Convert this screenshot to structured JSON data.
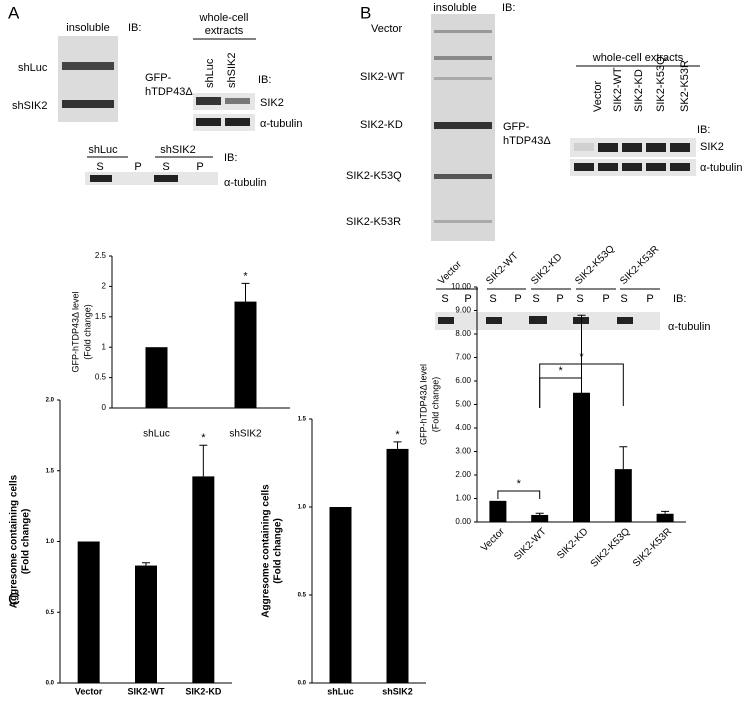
{
  "panel_labels": [
    "A",
    "B",
    "C"
  ],
  "panel_a": {
    "insoluble": {
      "title": "insoluble",
      "ib": "IB:",
      "lanes": [
        "shLuc",
        "shSIK2"
      ],
      "target": [
        "GFP-",
        "hTDP43Δ"
      ]
    },
    "whole_cell": {
      "title": [
        "whole-cell",
        "extracts"
      ],
      "lanes": [
        "shLuc",
        "shSIK2"
      ],
      "ib": "IB:",
      "targets": [
        "SIK2",
        "α-tubulin"
      ]
    },
    "fractions": {
      "groups": [
        "shLuc",
        "shSIK2"
      ],
      "fractions": [
        "S",
        "P",
        "S",
        "P"
      ],
      "ib": "IB:",
      "target": "α-tubulin"
    }
  },
  "panel_b": {
    "insoluble": {
      "title": "insoluble",
      "ib": "IB:",
      "lanes": [
        "Vector",
        "SIK2-WT",
        "SIK2-KD",
        "SIK2-K53Q",
        "SIK2-K53R"
      ],
      "target": [
        "GFP-",
        "hTDP43Δ"
      ]
    },
    "whole_cell": {
      "title": "whole-cell extracts",
      "lanes": [
        "Vector",
        "SIK2-WT",
        "SIK2-KD",
        "SIK2-K53Q",
        "SK2-K53R"
      ],
      "ib": "IB:",
      "targets": [
        "SIK2",
        "α-tubulin"
      ]
    },
    "fractions": {
      "groups": [
        "Vector",
        "SIK2-WT",
        "SIK2-KD",
        "SIK2-K53Q",
        "SIK2-K53R"
      ],
      "fractions": [
        "S",
        "P",
        "S",
        "P",
        "S",
        "P",
        "S",
        "P",
        "S",
        "P"
      ],
      "ib": "IB:",
      "target": "α-tubulin"
    }
  },
  "chart_data": [
    {
      "type": "bar",
      "ylabel": [
        "GFP-hTDP43Δ level",
        "(Fold change)"
      ],
      "categories": [
        "shLuc",
        "shSIK2"
      ],
      "values": [
        1,
        1.75
      ],
      "errors": [
        null,
        0.3
      ],
      "annotations": [
        null,
        "*"
      ],
      "color": "#000000",
      "ylim": [
        0,
        2.5
      ],
      "yticks": [
        0,
        0.5,
        1,
        1.5,
        2,
        2.5
      ]
    },
    {
      "type": "bar",
      "ylabel": [
        "GFP-hTDP43Δ level",
        "(Fold change)"
      ],
      "categories": [
        "Vector",
        "SIK2-WT",
        "SIK2-KD",
        "SIK2-K53Q",
        "SIK2-K53R"
      ],
      "values": [
        0.9,
        0.3,
        5.5,
        2.25,
        0.35
      ],
      "errors": [
        null,
        0.07,
        3.3,
        0.95,
        0.1
      ],
      "color": "#000000",
      "brackets": [
        {
          "from": "Vector",
          "to": "SIK2-WT",
          "label": "*"
        },
        {
          "from": "SIK2-WT",
          "to": "SIK2-KD",
          "label": "*"
        },
        {
          "from": "SIK2-WT",
          "to": "SIK2-K53Q",
          "label": "*"
        }
      ],
      "ylim": [
        0,
        10
      ],
      "yticks": [
        {
          "value": 0,
          "label": "0.00"
        },
        {
          "value": 1,
          "label": "1.00"
        },
        {
          "value": 2,
          "label": "2.00"
        },
        {
          "value": 3,
          "label": "3.00"
        },
        {
          "value": 4,
          "label": "4.00"
        },
        {
          "value": 5,
          "label": "5.00"
        },
        {
          "value": 6,
          "label": "6.00"
        },
        {
          "value": 7,
          "label": "7.00"
        },
        {
          "value": 8,
          "label": "8.00"
        },
        {
          "value": 9,
          "label": "9.00"
        },
        {
          "value": 10,
          "label": "10.00"
        }
      ]
    },
    {
      "type": "bar",
      "ylabel": [
        "Aggresome containing cells",
        "(Fold change)"
      ],
      "categories": [
        "Vector",
        "SIK2-WT",
        "SIK2-KD"
      ],
      "values": [
        1.0,
        0.83,
        1.46
      ],
      "errors": [
        null,
        0.02,
        0.22
      ],
      "annotations": [
        null,
        null,
        "*"
      ],
      "color": "#000000",
      "ylim": [
        0,
        2.0
      ],
      "yticks": [
        {
          "value": 0,
          "label": "0.0"
        },
        {
          "value": 0.5,
          "label": "0.5"
        },
        {
          "value": 1,
          "label": "1.0"
        },
        {
          "value": 1.5,
          "label": "1.5"
        },
        {
          "value": 2,
          "label": "2.0"
        }
      ]
    },
    {
      "type": "bar",
      "ylabel": [
        "Aggresome containing cells",
        "(Fold change)"
      ],
      "categories": [
        "shLuc",
        "shSIK2"
      ],
      "values": [
        1.0,
        1.33
      ],
      "errors": [
        null,
        0.04
      ],
      "annotations": [
        null,
        "*"
      ],
      "color": "#000000",
      "ylim": [
        0,
        1.5
      ],
      "yticks": [
        {
          "value": 0,
          "label": "0.0"
        },
        {
          "value": 0.5,
          "label": "0.5"
        },
        {
          "value": 1,
          "label": "1.0"
        },
        {
          "value": 1.5,
          "label": "1.5"
        }
      ]
    }
  ]
}
